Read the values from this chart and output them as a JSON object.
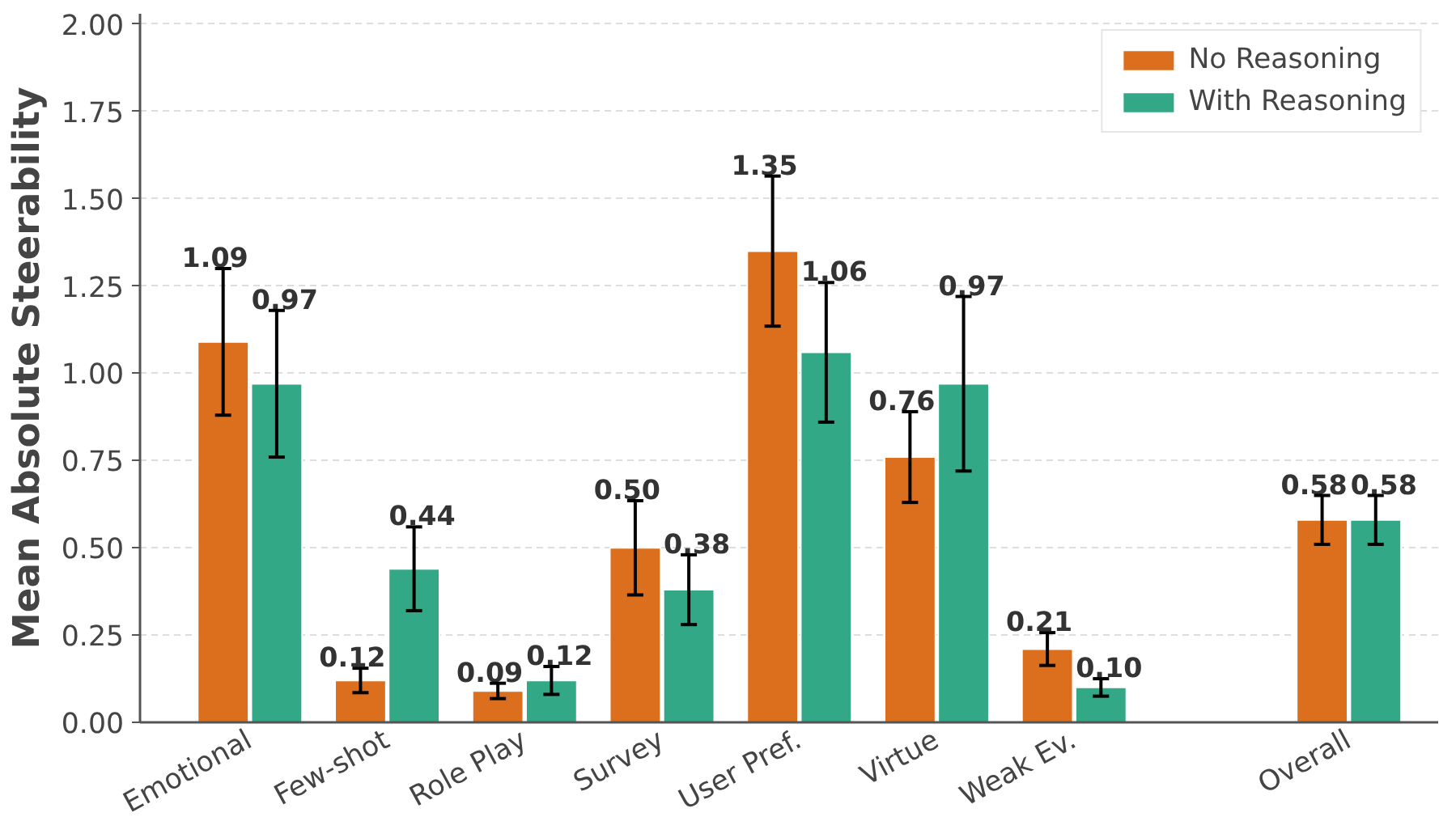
{
  "chart_data": {
    "type": "bar",
    "ylabel": "Mean Absolute Steerability",
    "categories": [
      "Emotional",
      "Few-shot",
      "Role Play",
      "Survey",
      "User Pref.",
      "Virtue",
      "Weak Ev.",
      null,
      "Overall"
    ],
    "series": [
      {
        "name": "No Reasoning",
        "color": "#dc6f1d",
        "values": [
          1.09,
          0.12,
          0.09,
          0.5,
          1.35,
          0.76,
          0.21,
          null,
          0.58
        ],
        "errors": [
          0.21,
          0.035,
          0.022,
          0.135,
          0.215,
          0.13,
          0.047,
          null,
          0.07
        ],
        "value_labels": [
          "1.09",
          "0.12",
          "0.09",
          "0.50",
          "1.35",
          "0.76",
          "0.21",
          null,
          "0.58"
        ]
      },
      {
        "name": "With Reasoning",
        "color": "#32a886",
        "values": [
          0.97,
          0.44,
          0.12,
          0.38,
          1.06,
          0.97,
          0.1,
          null,
          0.58
        ],
        "errors": [
          0.21,
          0.12,
          0.04,
          0.1,
          0.2,
          0.25,
          0.025,
          null,
          0.07
        ],
        "value_labels": [
          "0.97",
          "0.44",
          "0.12",
          "0.38",
          "1.06",
          "0.97",
          "0.10",
          null,
          "0.58"
        ]
      }
    ],
    "ylim": [
      0,
      2.03
    ],
    "yticks": [
      {
        "value": 0,
        "label": "0.00"
      },
      {
        "value": 0.25,
        "label": "0.25"
      },
      {
        "value": 0.5,
        "label": "0.50"
      },
      {
        "value": 0.75,
        "label": "0.75"
      },
      {
        "value": 1,
        "label": "1.00"
      },
      {
        "value": 1.25,
        "label": "1.25"
      },
      {
        "value": 1.5,
        "label": "1.50"
      },
      {
        "value": 1.75,
        "label": "1.75"
      },
      {
        "value": 2,
        "label": "2.00"
      }
    ],
    "grid": "y",
    "legend": "top right"
  }
}
